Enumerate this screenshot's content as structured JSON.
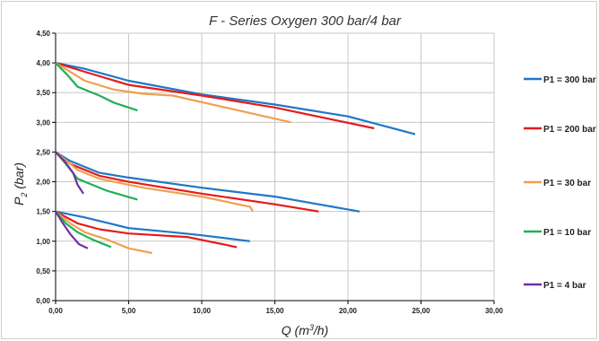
{
  "chart_data": {
    "type": "line",
    "title": "F - Series Oxygen 300 bar/4 bar",
    "xlabel_main": "Q (m",
    "xlabel_sup": "3",
    "xlabel_end": "/h)",
    "ylabel_main": "P",
    "ylabel_sub": "2",
    "ylabel_end": " (bar)",
    "xlim": [
      0,
      30
    ],
    "ylim": [
      0,
      4.5
    ],
    "x_ticks": [
      0,
      5,
      10,
      15,
      20,
      25,
      30
    ],
    "x_tick_labels": [
      "0,00",
      "5,00",
      "10,00",
      "15,00",
      "20,00",
      "25,00",
      "30,00"
    ],
    "y_ticks": [
      0,
      0.5,
      1.0,
      1.5,
      2.0,
      2.5,
      3.0,
      3.5,
      4.0,
      4.5
    ],
    "y_tick_labels": [
      "0,00",
      "0,50",
      "1,00",
      "1,50",
      "2,00",
      "2,50",
      "3,00",
      "3,50",
      "4,00",
      "4,50"
    ],
    "grid": true,
    "legend_position": "right",
    "series": [
      {
        "name": "P1 = 300 bar",
        "color": "#1f78c8",
        "lines": [
          [
            [
              0,
              4.0
            ],
            [
              2,
              3.9
            ],
            [
              5,
              3.7
            ],
            [
              10,
              3.47
            ],
            [
              15,
              3.3
            ],
            [
              20,
              3.1
            ],
            [
              24.6,
              2.8
            ]
          ],
          [
            [
              0,
              2.5
            ],
            [
              1,
              2.35
            ],
            [
              3,
              2.15
            ],
            [
              5,
              2.07
            ],
            [
              10,
              1.9
            ],
            [
              15,
              1.75
            ],
            [
              20.8,
              1.5
            ]
          ],
          [
            [
              0,
              1.5
            ],
            [
              2,
              1.4
            ],
            [
              5,
              1.22
            ],
            [
              8,
              1.15
            ],
            [
              10,
              1.1
            ],
            [
              13.3,
              1.0
            ]
          ]
        ]
      },
      {
        "name": "P1 = 200 bar",
        "color": "#e51a1a",
        "lines": [
          [
            [
              0,
              4.0
            ],
            [
              2,
              3.85
            ],
            [
              5,
              3.63
            ],
            [
              10,
              3.45
            ],
            [
              15,
              3.25
            ],
            [
              21.8,
              2.9
            ]
          ],
          [
            [
              0,
              2.5
            ],
            [
              1,
              2.3
            ],
            [
              3,
              2.1
            ],
            [
              5,
              2.0
            ],
            [
              10,
              1.8
            ],
            [
              15,
              1.62
            ],
            [
              18,
              1.5
            ]
          ],
          [
            [
              0,
              1.5
            ],
            [
              1.5,
              1.3
            ],
            [
              3,
              1.2
            ],
            [
              5,
              1.13
            ],
            [
              9,
              1.07
            ],
            [
              12.4,
              0.9
            ]
          ]
        ]
      },
      {
        "name": "P1 = 30 bar",
        "color": "#f0a050",
        "lines": [
          [
            [
              0,
              4.0
            ],
            [
              2,
              3.7
            ],
            [
              4,
              3.55
            ],
            [
              6,
              3.48
            ],
            [
              8,
              3.45
            ],
            [
              16.1,
              3.0
            ]
          ],
          [
            [
              0,
              2.5
            ],
            [
              1.5,
              2.2
            ],
            [
              3,
              2.05
            ],
            [
              6,
              1.9
            ],
            [
              10,
              1.75
            ],
            [
              13.3,
              1.58
            ],
            [
              13.5,
              1.5
            ]
          ],
          [
            [
              0,
              1.5
            ],
            [
              1,
              1.3
            ],
            [
              2,
              1.15
            ],
            [
              3.5,
              1.03
            ],
            [
              5,
              0.88
            ],
            [
              6.6,
              0.8
            ]
          ]
        ]
      },
      {
        "name": "P1 = 10 bar",
        "color": "#1eb053",
        "lines": [
          [
            [
              0,
              4.0
            ],
            [
              0.8,
              3.8
            ],
            [
              1.5,
              3.6
            ],
            [
              3,
              3.45
            ],
            [
              4,
              3.33
            ],
            [
              5,
              3.25
            ],
            [
              5.6,
              3.2
            ]
          ],
          [
            [
              0,
              2.5
            ],
            [
              0.7,
              2.3
            ],
            [
              1.5,
              2.05
            ],
            [
              2.5,
              1.95
            ],
            [
              3.5,
              1.85
            ],
            [
              5.6,
              1.7
            ]
          ],
          [
            [
              0,
              1.5
            ],
            [
              0.7,
              1.3
            ],
            [
              1.5,
              1.15
            ],
            [
              2.5,
              1.03
            ],
            [
              3.8,
              0.9
            ]
          ]
        ]
      },
      {
        "name": "P1 = 4 bar",
        "color": "#7030a0",
        "lines": [
          [
            [
              0,
              2.5
            ],
            [
              0.6,
              2.35
            ],
            [
              1.2,
              2.15
            ],
            [
              1.5,
              1.95
            ],
            [
              1.9,
              1.8
            ]
          ],
          [
            [
              0,
              1.5
            ],
            [
              0.5,
              1.3
            ],
            [
              1.0,
              1.12
            ],
            [
              1.6,
              0.95
            ],
            [
              2.2,
              0.88
            ]
          ]
        ]
      }
    ]
  }
}
